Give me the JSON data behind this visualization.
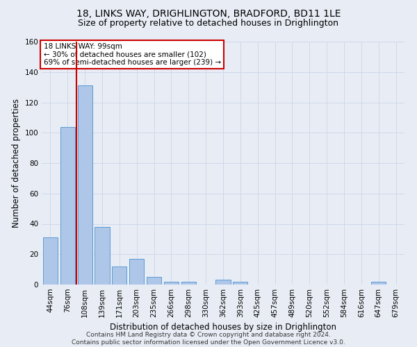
{
  "title_line1": "18, LINKS WAY, DRIGHLINGTON, BRADFORD, BD11 1LE",
  "title_line2": "Size of property relative to detached houses in Drighlington",
  "xlabel": "Distribution of detached houses by size in Drighlington",
  "ylabel": "Number of detached properties",
  "categories": [
    "44sqm",
    "76sqm",
    "108sqm",
    "139sqm",
    "171sqm",
    "203sqm",
    "235sqm",
    "266sqm",
    "298sqm",
    "330sqm",
    "362sqm",
    "393sqm",
    "425sqm",
    "457sqm",
    "489sqm",
    "520sqm",
    "552sqm",
    "584sqm",
    "616sqm",
    "647sqm",
    "679sqm"
  ],
  "values": [
    31,
    104,
    131,
    38,
    12,
    17,
    5,
    2,
    2,
    0,
    3,
    2,
    0,
    0,
    0,
    0,
    0,
    0,
    0,
    2,
    0
  ],
  "bar_color": "#aec6e8",
  "bar_edge_color": "#5b9bd5",
  "grid_color": "#d0d8e8",
  "background_color": "#e8edf5",
  "vline_color": "#cc0000",
  "vline_position": 1.5,
  "annotation_text": "18 LINKS WAY: 99sqm\n← 30% of detached houses are smaller (102)\n69% of semi-detached houses are larger (239) →",
  "annotation_box_color": "#ffffff",
  "annotation_box_edge_color": "#cc0000",
  "ylim": [
    0,
    160
  ],
  "yticks": [
    0,
    20,
    40,
    60,
    80,
    100,
    120,
    140,
    160
  ],
  "footnote": "Contains HM Land Registry data © Crown copyright and database right 2024.\nContains public sector information licensed under the Open Government Licence v3.0.",
  "title1_fontsize": 10,
  "title2_fontsize": 9,
  "xlabel_fontsize": 8.5,
  "ylabel_fontsize": 8.5,
  "tick_fontsize": 7.5,
  "annotation_fontsize": 7.5,
  "footnote_fontsize": 6.5
}
